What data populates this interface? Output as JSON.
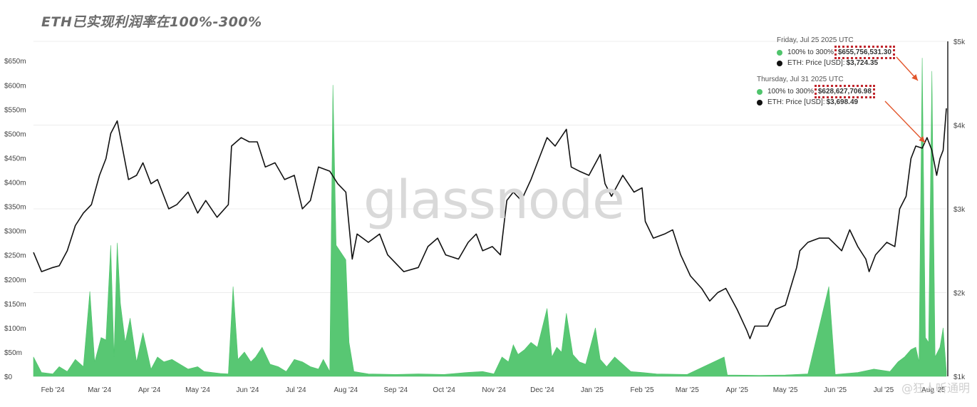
{
  "title": "ETH已实现利润率在100%-300%",
  "watermark": "glassnode",
  "corner_mark": "@狂人听通明",
  "tooltips": [
    {
      "date": "Friday, Jul 25 2025 UTC",
      "series_label": "100% to 300%",
      "series_value": "$655,756,531.30",
      "price_label": "ETH: Price [USD]",
      "price_value": "$3,724.35"
    },
    {
      "date": "Thursday, Jul 31 2025 UTC",
      "series_label": "100% to 300%",
      "series_value": "$628,627,706.98",
      "price_label": "ETH: Price [USD]",
      "price_value": "$3,698.49"
    }
  ],
  "colors": {
    "area": "#4fc46c",
    "price": "#111111",
    "annotation": "#e2562c",
    "highlight": "#c0262d"
  },
  "chart_data": {
    "type": "area",
    "title": "ETH已实现利润率在100%-300%",
    "x_tick_labels": [
      "Feb '24",
      "Mar '24",
      "Apr '24",
      "May '24",
      "Jun '24",
      "Jul '24",
      "Aug '24",
      "Sep '24",
      "Oct '24",
      "Nov '24",
      "Dec '24",
      "Jan '25",
      "Feb '25",
      "Mar '25",
      "Apr '25",
      "May '25",
      "Jun '25",
      "Jul '25",
      "Aug '25"
    ],
    "y_left_ticks": [
      "$0",
      "$50m",
      "$100m",
      "$150m",
      "$200m",
      "$250m",
      "$300m",
      "$350m",
      "$400m",
      "$450m",
      "$500m",
      "$550m",
      "$600m",
      "$650m"
    ],
    "y_left_range": [
      0,
      690
    ],
    "y_right_ticks": [
      "$1k",
      "$2k",
      "$3k",
      "$4k",
      "$5k"
    ],
    "y_right_range": [
      1000,
      5000
    ],
    "grid": true,
    "series": [
      {
        "name": "100% to 300%",
        "axis": "left",
        "unit": "million USD",
        "points": [
          [
            "2024-01-20",
            40
          ],
          [
            "2024-01-25",
            8
          ],
          [
            "2024-02-01",
            5
          ],
          [
            "2024-02-05",
            20
          ],
          [
            "2024-02-10",
            10
          ],
          [
            "2024-02-15",
            35
          ],
          [
            "2024-02-20",
            20
          ],
          [
            "2024-02-24",
            175
          ],
          [
            "2024-02-27",
            30
          ],
          [
            "2024-03-02",
            80
          ],
          [
            "2024-03-05",
            75
          ],
          [
            "2024-03-08",
            270
          ],
          [
            "2024-03-10",
            40
          ],
          [
            "2024-03-12",
            275
          ],
          [
            "2024-03-14",
            150
          ],
          [
            "2024-03-17",
            70
          ],
          [
            "2024-03-20",
            120
          ],
          [
            "2024-03-24",
            30
          ],
          [
            "2024-03-28",
            90
          ],
          [
            "2024-04-02",
            15
          ],
          [
            "2024-04-06",
            40
          ],
          [
            "2024-04-10",
            30
          ],
          [
            "2024-04-15",
            35
          ],
          [
            "2024-04-20",
            25
          ],
          [
            "2024-04-25",
            15
          ],
          [
            "2024-05-01",
            20
          ],
          [
            "2024-05-05",
            10
          ],
          [
            "2024-05-10",
            8
          ],
          [
            "2024-05-15",
            6
          ],
          [
            "2024-05-20",
            5
          ],
          [
            "2024-05-23",
            185
          ],
          [
            "2024-05-26",
            35
          ],
          [
            "2024-05-30",
            50
          ],
          [
            "2024-06-03",
            30
          ],
          [
            "2024-06-06",
            40
          ],
          [
            "2024-06-10",
            60
          ],
          [
            "2024-06-15",
            25
          ],
          [
            "2024-06-20",
            20
          ],
          [
            "2024-06-25",
            10
          ],
          [
            "2024-06-30",
            35
          ],
          [
            "2024-07-05",
            30
          ],
          [
            "2024-07-10",
            20
          ],
          [
            "2024-07-15",
            15
          ],
          [
            "2024-07-18",
            35
          ],
          [
            "2024-07-22",
            10
          ],
          [
            "2024-07-24",
            600
          ],
          [
            "2024-07-26",
            270
          ],
          [
            "2024-07-29",
            255
          ],
          [
            "2024-08-01",
            240
          ],
          [
            "2024-08-03",
            70
          ],
          [
            "2024-08-06",
            10
          ],
          [
            "2024-08-15",
            5
          ],
          [
            "2024-09-01",
            4
          ],
          [
            "2024-09-15",
            5
          ],
          [
            "2024-10-01",
            4
          ],
          [
            "2024-10-15",
            8
          ],
          [
            "2024-10-25",
            10
          ],
          [
            "2024-11-01",
            5
          ],
          [
            "2024-11-06",
            40
          ],
          [
            "2024-11-10",
            30
          ],
          [
            "2024-11-13",
            65
          ],
          [
            "2024-11-16",
            45
          ],
          [
            "2024-11-20",
            55
          ],
          [
            "2024-11-24",
            70
          ],
          [
            "2024-11-28",
            60
          ],
          [
            "2024-12-01",
            100
          ],
          [
            "2024-12-04",
            140
          ],
          [
            "2024-12-07",
            40
          ],
          [
            "2024-12-10",
            60
          ],
          [
            "2024-12-13",
            50
          ],
          [
            "2024-12-16",
            130
          ],
          [
            "2024-12-20",
            45
          ],
          [
            "2024-12-24",
            30
          ],
          [
            "2024-12-28",
            25
          ],
          [
            "2025-01-03",
            100
          ],
          [
            "2025-01-06",
            35
          ],
          [
            "2025-01-10",
            20
          ],
          [
            "2025-01-15",
            40
          ],
          [
            "2025-01-20",
            25
          ],
          [
            "2025-01-25",
            10
          ],
          [
            "2025-02-01",
            8
          ],
          [
            "2025-02-10",
            5
          ],
          [
            "2025-03-01",
            4
          ],
          [
            "2025-03-24",
            40
          ],
          [
            "2025-03-26",
            3
          ],
          [
            "2025-04-15",
            2
          ],
          [
            "2025-05-01",
            3
          ],
          [
            "2025-05-15",
            5
          ],
          [
            "2025-05-28",
            185
          ],
          [
            "2025-06-01",
            4
          ],
          [
            "2025-06-15",
            8
          ],
          [
            "2025-06-25",
            15
          ],
          [
            "2025-07-05",
            10
          ],
          [
            "2025-07-10",
            30
          ],
          [
            "2025-07-14",
            40
          ],
          [
            "2025-07-18",
            55
          ],
          [
            "2025-07-21",
            60
          ],
          [
            "2025-07-23",
            30
          ],
          [
            "2025-07-25",
            655.76
          ],
          [
            "2025-07-27",
            80
          ],
          [
            "2025-07-29",
            70
          ],
          [
            "2025-07-31",
            628.63
          ],
          [
            "2025-08-02",
            40
          ],
          [
            "2025-08-05",
            60
          ],
          [
            "2025-08-07",
            100
          ],
          [
            "2025-08-09",
            10
          ]
        ]
      },
      {
        "name": "ETH: Price [USD]",
        "axis": "right",
        "unit": "USD",
        "points": [
          [
            "2024-01-20",
            2480
          ],
          [
            "2024-01-25",
            2250
          ],
          [
            "2024-02-01",
            2300
          ],
          [
            "2024-02-05",
            2320
          ],
          [
            "2024-02-10",
            2500
          ],
          [
            "2024-02-15",
            2800
          ],
          [
            "2024-02-20",
            2950
          ],
          [
            "2024-02-25",
            3050
          ],
          [
            "2024-03-01",
            3400
          ],
          [
            "2024-03-05",
            3600
          ],
          [
            "2024-03-08",
            3900
          ],
          [
            "2024-03-12",
            4050
          ],
          [
            "2024-03-15",
            3750
          ],
          [
            "2024-03-19",
            3350
          ],
          [
            "2024-03-24",
            3400
          ],
          [
            "2024-03-28",
            3550
          ],
          [
            "2024-04-02",
            3300
          ],
          [
            "2024-04-06",
            3350
          ],
          [
            "2024-04-13",
            3000
          ],
          [
            "2024-04-18",
            3050
          ],
          [
            "2024-04-25",
            3200
          ],
          [
            "2024-05-01",
            2950
          ],
          [
            "2024-05-06",
            3100
          ],
          [
            "2024-05-13",
            2900
          ],
          [
            "2024-05-20",
            3050
          ],
          [
            "2024-05-22",
            3750
          ],
          [
            "2024-05-28",
            3850
          ],
          [
            "2024-06-02",
            3800
          ],
          [
            "2024-06-07",
            3800
          ],
          [
            "2024-06-12",
            3500
          ],
          [
            "2024-06-18",
            3550
          ],
          [
            "2024-06-24",
            3350
          ],
          [
            "2024-06-30",
            3400
          ],
          [
            "2024-07-05",
            3000
          ],
          [
            "2024-07-10",
            3100
          ],
          [
            "2024-07-15",
            3500
          ],
          [
            "2024-07-22",
            3450
          ],
          [
            "2024-07-27",
            3300
          ],
          [
            "2024-08-01",
            3200
          ],
          [
            "2024-08-05",
            2400
          ],
          [
            "2024-08-08",
            2700
          ],
          [
            "2024-08-15",
            2600
          ],
          [
            "2024-08-22",
            2700
          ],
          [
            "2024-08-27",
            2450
          ],
          [
            "2024-09-06",
            2250
          ],
          [
            "2024-09-15",
            2300
          ],
          [
            "2024-09-21",
            2550
          ],
          [
            "2024-09-27",
            2650
          ],
          [
            "2024-10-02",
            2450
          ],
          [
            "2024-10-10",
            2400
          ],
          [
            "2024-10-16",
            2600
          ],
          [
            "2024-10-21",
            2700
          ],
          [
            "2024-10-25",
            2500
          ],
          [
            "2024-10-31",
            2550
          ],
          [
            "2024-11-05",
            2450
          ],
          [
            "2024-11-09",
            3100
          ],
          [
            "2024-11-13",
            3200
          ],
          [
            "2024-11-18",
            3100
          ],
          [
            "2024-11-24",
            3350
          ],
          [
            "2024-11-28",
            3550
          ],
          [
            "2024-12-04",
            3850
          ],
          [
            "2024-12-09",
            3750
          ],
          [
            "2024-12-16",
            3950
          ],
          [
            "2024-12-19",
            3500
          ],
          [
            "2024-12-24",
            3450
          ],
          [
            "2024-12-30",
            3400
          ],
          [
            "2025-01-06",
            3650
          ],
          [
            "2025-01-09",
            3300
          ],
          [
            "2025-01-13",
            3150
          ],
          [
            "2025-01-20",
            3400
          ],
          [
            "2025-01-27",
            3200
          ],
          [
            "2025-02-01",
            3250
          ],
          [
            "2025-02-03",
            2850
          ],
          [
            "2025-02-08",
            2650
          ],
          [
            "2025-02-15",
            2700
          ],
          [
            "2025-02-20",
            2750
          ],
          [
            "2025-02-25",
            2450
          ],
          [
            "2025-03-03",
            2200
          ],
          [
            "2025-03-10",
            2050
          ],
          [
            "2025-03-15",
            1900
          ],
          [
            "2025-03-20",
            2000
          ],
          [
            "2025-03-25",
            2050
          ],
          [
            "2025-04-01",
            1800
          ],
          [
            "2025-04-07",
            1550
          ],
          [
            "2025-04-09",
            1450
          ],
          [
            "2025-04-12",
            1600
          ],
          [
            "2025-04-20",
            1600
          ],
          [
            "2025-04-25",
            1800
          ],
          [
            "2025-05-01",
            1850
          ],
          [
            "2025-05-08",
            2300
          ],
          [
            "2025-05-10",
            2500
          ],
          [
            "2025-05-15",
            2600
          ],
          [
            "2025-05-22",
            2650
          ],
          [
            "2025-05-28",
            2650
          ],
          [
            "2025-06-05",
            2500
          ],
          [
            "2025-06-10",
            2750
          ],
          [
            "2025-06-15",
            2550
          ],
          [
            "2025-06-20",
            2400
          ],
          [
            "2025-06-22",
            2250
          ],
          [
            "2025-06-26",
            2450
          ],
          [
            "2025-07-03",
            2600
          ],
          [
            "2025-07-08",
            2550
          ],
          [
            "2025-07-11",
            3000
          ],
          [
            "2025-07-15",
            3150
          ],
          [
            "2025-07-18",
            3600
          ],
          [
            "2025-07-21",
            3750
          ],
          [
            "2025-07-25",
            3724.35
          ],
          [
            "2025-07-28",
            3850
          ],
          [
            "2025-07-31",
            3698.49
          ],
          [
            "2025-08-03",
            3400
          ],
          [
            "2025-08-05",
            3600
          ],
          [
            "2025-08-07",
            3700
          ],
          [
            "2025-08-09",
            4200
          ]
        ]
      }
    ]
  }
}
